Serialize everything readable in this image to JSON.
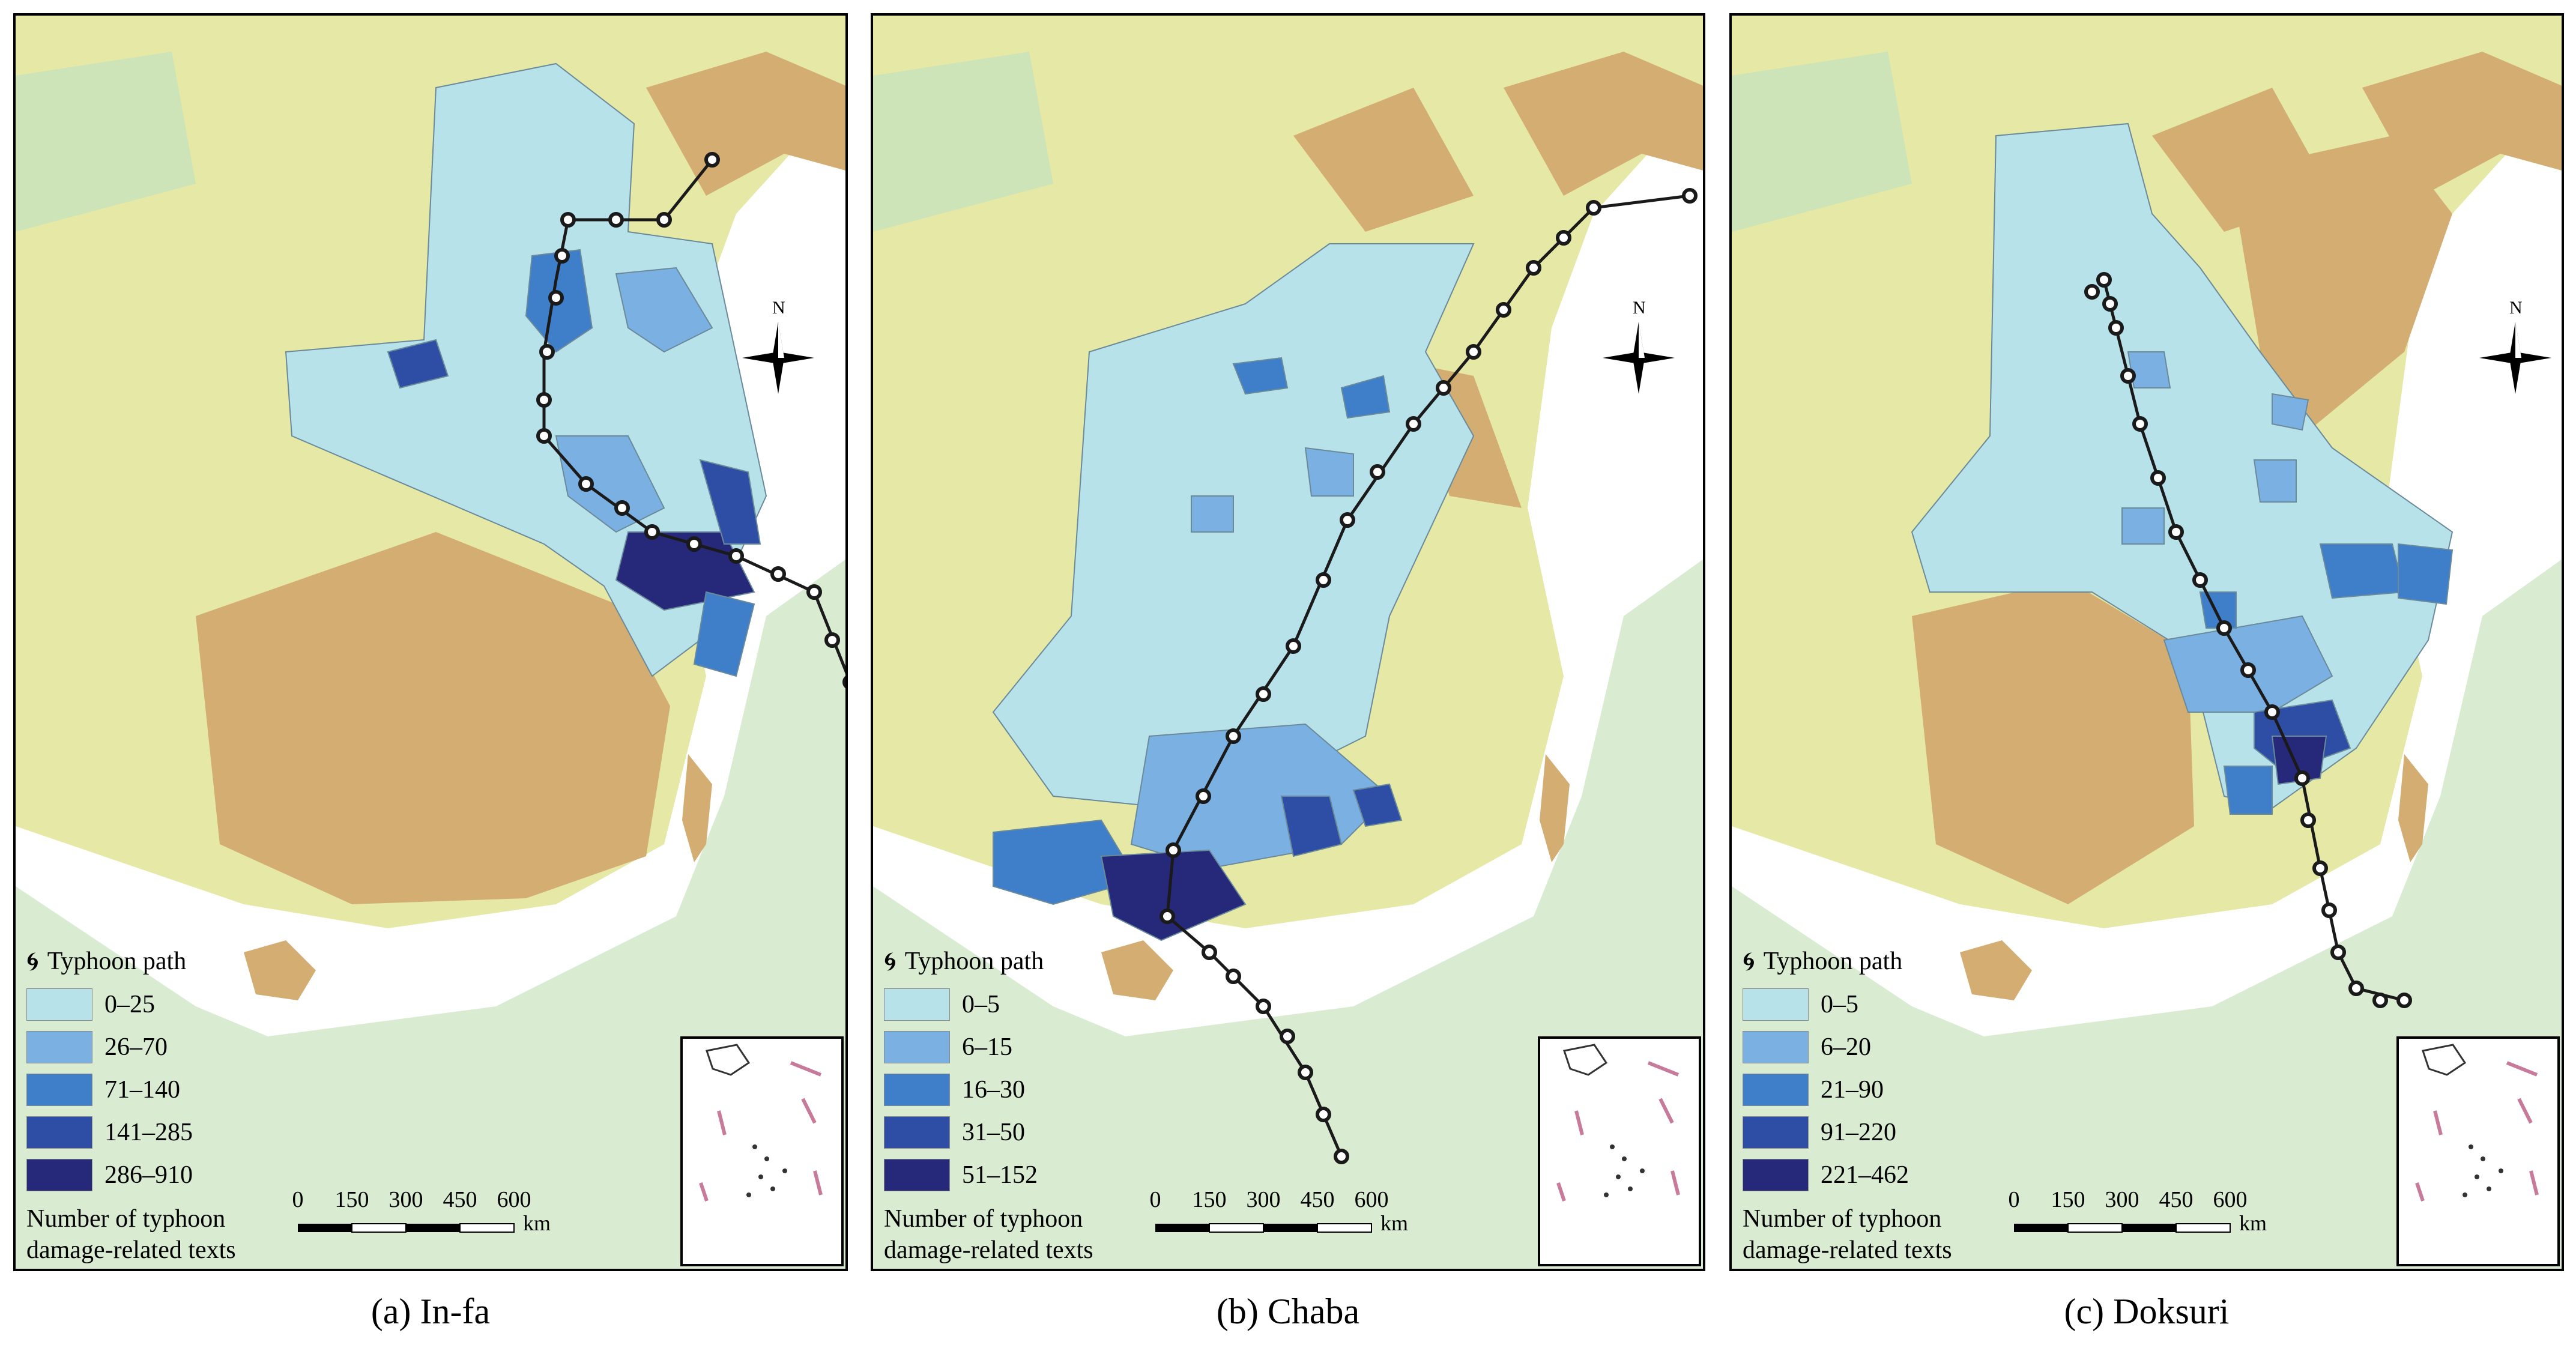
{
  "panels": [
    {
      "caption": "(a) In-fa",
      "legend": {
        "path_label": "Typhoon path",
        "ranges": [
          "0–25",
          "26–70",
          "71–140",
          "141–285",
          "286–910"
        ],
        "title_line1": "Number of typhoon",
        "title_line2": "damage-related texts"
      },
      "scale": {
        "ticks": [
          "0",
          "150",
          "300",
          "450",
          "600"
        ],
        "unit": "km"
      },
      "compass": "N"
    },
    {
      "caption": "(b) Chaba",
      "legend": {
        "path_label": "Typhoon path",
        "ranges": [
          "0–5",
          "6–15",
          "16–30",
          "31–50",
          "51–152"
        ],
        "title_line1": "Number of typhoon",
        "title_line2": "damage-related texts"
      },
      "scale": {
        "ticks": [
          "0",
          "150",
          "300",
          "450",
          "600"
        ],
        "unit": "km"
      },
      "compass": "N"
    },
    {
      "caption": "(c) Doksuri",
      "legend": {
        "path_label": "Typhoon path",
        "ranges": [
          "0–5",
          "6–20",
          "21–90",
          "91–220",
          "221–462"
        ],
        "title_line1": "Number of typhoon",
        "title_line2": "damage-related texts"
      },
      "scale": {
        "ticks": [
          "0",
          "150",
          "300",
          "450",
          "600"
        ],
        "unit": "km"
      },
      "compass": "N"
    }
  ],
  "colors": {
    "class1": "#b8e2ea",
    "class2": "#7bb0e3",
    "class3": "#3f7fca",
    "class4": "#2e4ea5",
    "class5": "#26287a",
    "lowland": "#cfe7c4",
    "upland": "#e8e39c",
    "mountain": "#d6b27a",
    "sea": "#ffffff",
    "path": "#1a1a1a"
  }
}
